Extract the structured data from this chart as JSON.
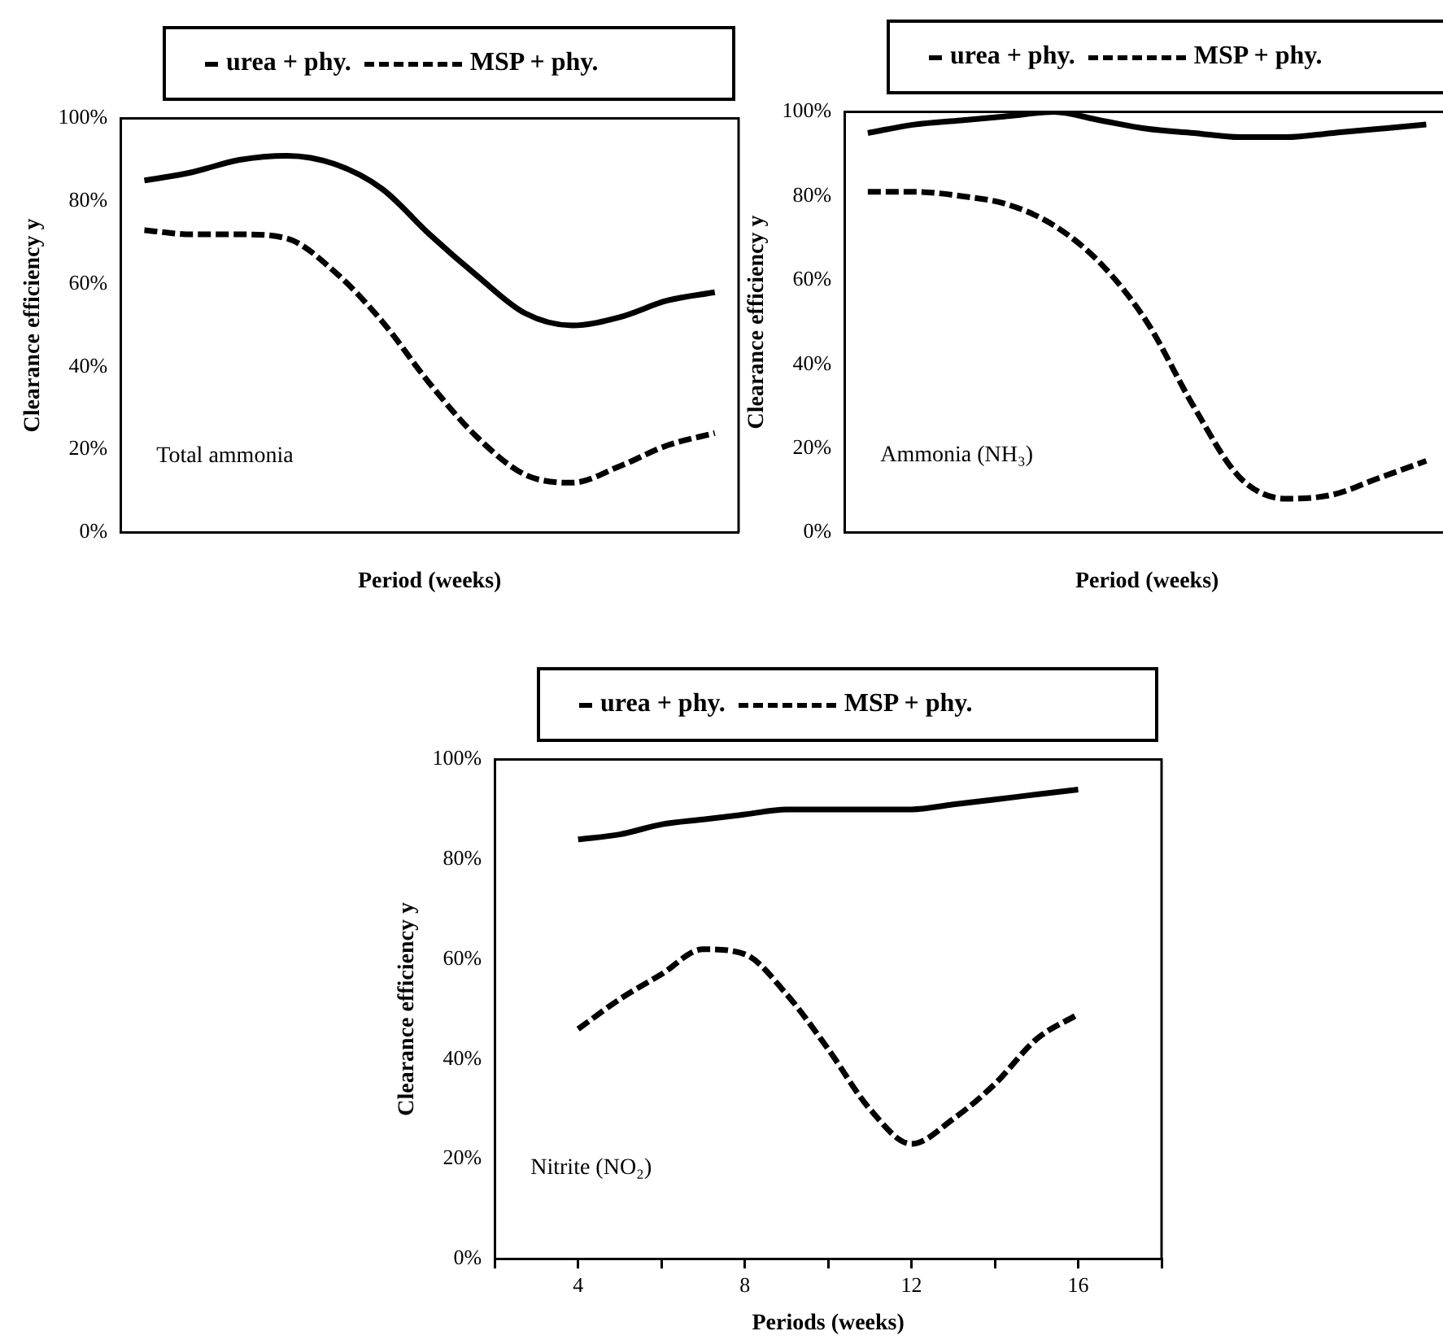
{
  "chart_data": [
    {
      "type": "line",
      "xlabel": "Period (weeks)",
      "ylabel": "Clearance efficiency y",
      "categories": [
        null,
        null,
        null,
        null,
        null,
        null,
        null,
        null,
        null,
        null,
        null,
        null,
        null
      ],
      "ylim": [
        0,
        100
      ],
      "yticks": [
        {
          "value": 0,
          "label": "0%"
        },
        {
          "value": 20,
          "label": "20%"
        },
        {
          "value": 40,
          "label": "40%"
        },
        {
          "value": 60,
          "label": "60%"
        },
        {
          "value": 80,
          "label": "80%"
        },
        {
          "value": 100,
          "label": "100%"
        }
      ],
      "tick_labels": "y",
      "legend": "top",
      "marker": "none",
      "annotations": [
        "Total ammonia"
      ],
      "series": [
        {
          "name": "urea + phy.",
          "color": "#000000",
          "line_style": "solid",
          "values": [
            85,
            87,
            90,
            91,
            89,
            83,
            72,
            62,
            53,
            50,
            52,
            56,
            58
          ]
        },
        {
          "name": "MSP + phy.",
          "color": "#000000",
          "line_style": "dashed",
          "values": [
            73,
            72,
            72,
            71,
            63,
            51,
            36,
            23,
            14,
            12,
            16,
            21,
            24
          ]
        }
      ]
    },
    {
      "type": "line",
      "xlabel": "Period (weeks)",
      "ylabel": "Clearance efficiency y",
      "categories": [
        null,
        null,
        null,
        null,
        null,
        null,
        null,
        null,
        null,
        null,
        null,
        null,
        null
      ],
      "ylim": [
        0,
        100
      ],
      "yticks": [
        {
          "value": 0,
          "label": "0%"
        },
        {
          "value": 20,
          "label": "20%"
        },
        {
          "value": 40,
          "label": "40%"
        },
        {
          "value": 60,
          "label": "60%"
        },
        {
          "value": 80,
          "label": "80%"
        },
        {
          "value": 100,
          "label": "100%"
        }
      ],
      "tick_labels": "y",
      "legend": "top",
      "marker": "none",
      "annotations": [
        "Ammonia (NH₃)"
      ],
      "series": [
        {
          "name": "urea + phy.",
          "color": "#000000",
          "line_style": "solid",
          "values": [
            95,
            97,
            98,
            99,
            100,
            98,
            96,
            95,
            94,
            94,
            95,
            96,
            97
          ]
        },
        {
          "name": "MSP + phy.",
          "color": "#000000",
          "line_style": "dashed",
          "values": [
            81,
            81,
            80,
            78,
            73,
            64,
            50,
            30,
            13,
            8,
            9,
            13,
            17
          ]
        }
      ]
    },
    {
      "type": "line",
      "xlabel": "Periods (weeks)",
      "ylabel": "Clearance efficiency y",
      "x": [
        4,
        5,
        6,
        7,
        8,
        9,
        10,
        11,
        12,
        13,
        14,
        15,
        16
      ],
      "xlim": [
        2,
        18
      ],
      "xticks": [
        {
          "value": 2,
          "label": null
        },
        4,
        {
          "value": 6,
          "label": null
        },
        8,
        {
          "value": 10,
          "label": null
        },
        12,
        {
          "value": 14,
          "label": null
        },
        16,
        {
          "value": 18,
          "label": null
        }
      ],
      "ylim": [
        0,
        100
      ],
      "yticks": [
        {
          "value": 0,
          "label": "0%"
        },
        {
          "value": 20,
          "label": "20%"
        },
        {
          "value": 40,
          "label": "40%"
        },
        {
          "value": 60,
          "label": "60%"
        },
        {
          "value": 80,
          "label": "80%"
        },
        {
          "value": 100,
          "label": "100%"
        }
      ],
      "legend": "top",
      "marker": "none",
      "annotations": [
        "Nitrite (NO₂)"
      ],
      "series": [
        {
          "name": "urea + phy.",
          "color": "#000000",
          "line_style": "solid",
          "values": [
            84,
            85,
            87,
            88,
            89,
            90,
            90,
            90,
            90,
            91,
            92,
            93,
            94
          ]
        },
        {
          "name": "MSP + phy.",
          "color": "#000000",
          "line_style": "dashed",
          "values": [
            46,
            52,
            57,
            62,
            61,
            53,
            42,
            30,
            23,
            28,
            35,
            44,
            49
          ]
        }
      ]
    }
  ]
}
